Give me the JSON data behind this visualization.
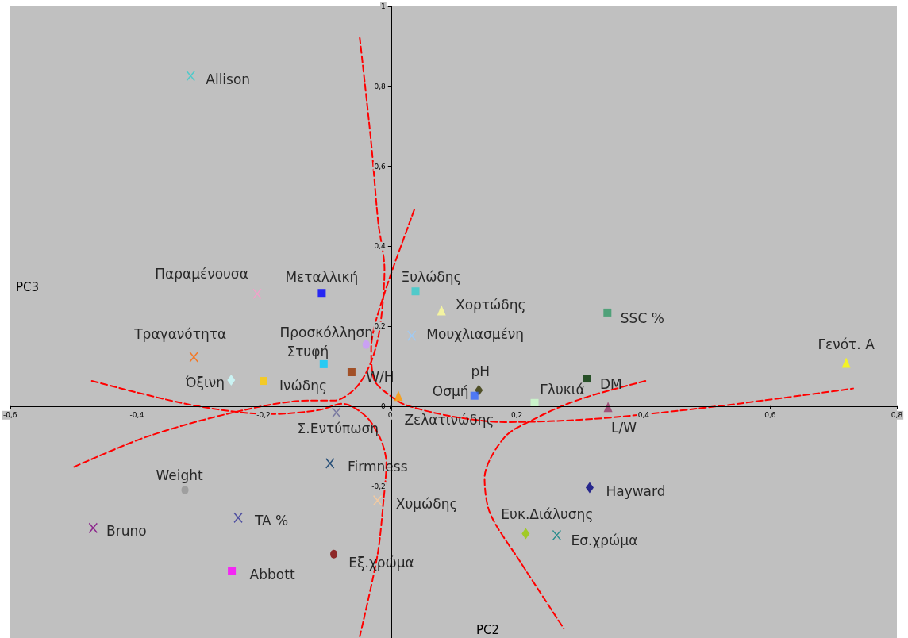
{
  "chart_data": {
    "type": "scatter",
    "xlabel": "PC2",
    "ylabel": "PC3",
    "xlim": [
      -0.6,
      0.8
    ],
    "ylim": [
      -0.58,
      1
    ],
    "xticks": [
      {
        "value": -0.6,
        "label": "-0,6"
      },
      {
        "value": -0.4,
        "label": "-0,4"
      },
      {
        "value": -0.2,
        "label": "-0,2"
      },
      0,
      {
        "value": 0.2,
        "label": "0,2"
      },
      {
        "value": 0.4,
        "label": "0,4"
      },
      {
        "value": 0.6,
        "label": "0,6"
      },
      {
        "value": 0.8,
        "label": "0,8"
      }
    ],
    "yticks": [
      {
        "value": -0.2,
        "label": "-0,2"
      },
      0,
      {
        "value": 0.2,
        "label": "0,2"
      },
      {
        "value": 0.4,
        "label": "0,4"
      },
      {
        "value": 0.6,
        "label": "0,6"
      },
      {
        "value": 0.8,
        "label": "0,8"
      },
      1
    ],
    "grid": false,
    "legend": false,
    "series": [
      {
        "name": "Allison",
        "color": "#33cccc",
        "marker": "cross",
        "x": [
          -0.315
        ],
        "values": [
          0.826
        ]
      },
      {
        "name": "Παραμένουσα",
        "color": "#ff99cc",
        "marker": "cross",
        "x": [
          -0.21
        ],
        "values": [
          0.281
        ]
      },
      {
        "name": "Μεταλλική",
        "color": "#0000ff",
        "marker": "square",
        "x": [
          -0.108
        ],
        "values": [
          0.283
        ]
      },
      {
        "name": "Ξυλώδης",
        "color": "#33cccc",
        "marker": "square",
        "x": [
          0.04
        ],
        "values": [
          0.287
        ]
      },
      {
        "name": "Χορτώδης",
        "color": "#ffff99",
        "marker": "triangle",
        "x": [
          0.081
        ],
        "values": [
          0.24
        ]
      },
      {
        "name": "SSC %",
        "color": "#339966",
        "marker": "square",
        "x": [
          0.343
        ],
        "values": [
          0.234
        ]
      },
      {
        "name": "Μουχλιασμένη",
        "color": "#99ccff",
        "marker": "cross",
        "x": [
          0.034
        ],
        "values": [
          0.176
        ]
      },
      {
        "name": "Προσκόλληση",
        "color": "#cc99ff",
        "marker": "circle",
        "x": [
          -0.038
        ],
        "values": [
          0.154
        ]
      },
      {
        "name": "Τραγανότητα",
        "color": "#ff6600",
        "marker": "cross",
        "x": [
          -0.31
        ],
        "values": [
          0.123
        ]
      },
      {
        "name": "Στυφή",
        "color": "#00ccff",
        "marker": "square",
        "x": [
          -0.105
        ],
        "values": [
          0.105
        ]
      },
      {
        "name": "Γενότ. Α",
        "color": "#ffff00",
        "marker": "triangle",
        "x": [
          0.72
        ],
        "values": [
          0.109
        ]
      },
      {
        "name": "W/H",
        "color": "#993300",
        "marker": "square",
        "x": [
          -0.061
        ],
        "values": [
          0.085
        ]
      },
      {
        "name": "Όξινη",
        "color": "#ccffff",
        "marker": "diamond",
        "x": [
          -0.251
        ],
        "values": [
          0.065
        ]
      },
      {
        "name": "Ινώδης",
        "color": "#ffcc00",
        "marker": "square",
        "x": [
          -0.2
        ],
        "values": [
          0.063
        ]
      },
      {
        "name": "pH",
        "color": "#333300",
        "marker": "diamond",
        "x": [
          0.14
        ],
        "values": [
          0.04
        ]
      },
      {
        "name": "Οσμή",
        "color": "#3366ff",
        "marker": "square",
        "x": [
          0.133
        ],
        "values": [
          0.026
        ]
      },
      {
        "name": "DM",
        "color": "#003300",
        "marker": "square",
        "x": [
          0.311
        ],
        "values": [
          0.069
        ]
      },
      {
        "name": "Γλυκιά",
        "color": "#ccffcc",
        "marker": "square",
        "x": [
          0.228
        ],
        "values": [
          0.008
        ]
      },
      {
        "name": "L/W",
        "color": "#993366",
        "marker": "triangle",
        "x": [
          0.344
        ],
        "values": [
          -0.002
        ]
      },
      {
        "name": "Ζελατινώδης",
        "color": "#ff9900",
        "marker": "triangle",
        "x": [
          0.013
        ],
        "values": [
          0.026
        ]
      },
      {
        "name": "Σ.Εντύπωση",
        "color": "#666699",
        "marker": "cross",
        "x": [
          -0.085
        ],
        "values": [
          -0.016
        ]
      },
      {
        "name": "Firmness",
        "color": "#003366",
        "marker": "cross",
        "x": [
          -0.095
        ],
        "values": [
          -0.143
        ]
      },
      {
        "name": "Weight",
        "color": "#969696",
        "marker": "circle",
        "x": [
          -0.324
        ],
        "values": [
          -0.21
        ]
      },
      {
        "name": "Χυμώδης",
        "color": "#ffcc99",
        "marker": "cross",
        "x": [
          -0.02
        ],
        "values": [
          -0.236
        ]
      },
      {
        "name": "Hayward",
        "color": "#000080",
        "marker": "diamond",
        "x": [
          0.315
        ],
        "values": [
          -0.204
        ]
      },
      {
        "name": "TA %",
        "color": "#333399",
        "marker": "cross",
        "x": [
          -0.24
        ],
        "values": [
          -0.279
        ]
      },
      {
        "name": "Bruno",
        "color": "#800080",
        "marker": "cross",
        "x": [
          -0.469
        ],
        "values": [
          -0.305
        ]
      },
      {
        "name": "Ευκ.Διάλυσης",
        "color": "#99cc00",
        "marker": "diamond",
        "x": [
          0.214
        ],
        "values": [
          -0.319
        ]
      },
      {
        "name": "Εσ.χρώμα",
        "color": "#008080",
        "marker": "cross",
        "x": [
          0.263
        ],
        "values": [
          -0.323
        ]
      },
      {
        "name": "Εξ.χρώμα",
        "color": "#800000",
        "marker": "circle",
        "x": [
          -0.089
        ],
        "values": [
          -0.37
        ]
      },
      {
        "name": "Abbott",
        "color": "#ff00ff",
        "marker": "square",
        "x": [
          -0.25
        ],
        "values": [
          -0.412
        ]
      },
      {
        "type": "line",
        "color": "#ff0000",
        "line_style": "dashed",
        "marker": "none",
        "x": [
          -0.499,
          -0.385,
          -0.248,
          -0.129,
          -0.088,
          -0.054,
          -0.03,
          -0.016,
          -0.009,
          -0.019,
          -0.03,
          -0.048
        ],
        "values": [
          -0.152,
          -0.077,
          -0.016,
          0.014,
          0.014,
          0.046,
          0.111,
          0.198,
          0.343,
          0.461,
          0.659,
          0.921
        ]
      },
      {
        "type": "line",
        "color": "#ff0000",
        "line_style": "dashed",
        "marker": "none",
        "x": [
          -0.471,
          -0.311,
          -0.189,
          -0.113,
          -0.075,
          -0.038,
          -0.015,
          -0.006,
          -0.01,
          -0.02,
          -0.048
        ],
        "values": [
          0.063,
          0.002,
          -0.02,
          -0.01,
          0.006,
          -0.026,
          -0.083,
          -0.143,
          -0.228,
          -0.372,
          -0.576
        ]
      },
      {
        "type": "line",
        "color": "#ff0000",
        "line_style": "dashed",
        "marker": "none",
        "x": [
          0.038,
          0.006,
          -0.013,
          -0.025,
          -0.03,
          -0.025,
          0,
          0.026,
          0.099,
          0.181,
          0.321,
          0.508,
          0.731
        ],
        "values": [
          0.491,
          0.352,
          0.263,
          0.198,
          0.145,
          0.065,
          0.026,
          0.002,
          -0.026,
          -0.04,
          -0.032,
          -0.002,
          0.044
        ]
      },
      {
        "type": "line",
        "color": "#ff0000",
        "line_style": "dashed",
        "marker": "none",
        "x": [
          0.403,
          0.321,
          0.274,
          0.228,
          0.181,
          0.149,
          0.158,
          0.204,
          0.274
        ],
        "values": [
          0.063,
          0.028,
          0.002,
          -0.032,
          -0.077,
          -0.18,
          -0.269,
          -0.386,
          -0.556
        ]
      }
    ]
  }
}
